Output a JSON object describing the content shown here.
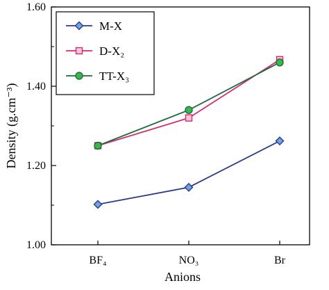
{
  "chart_data": {
    "type": "line",
    "title": "",
    "xlabel": "Anions",
    "ylabel": "Density (g.cm⁻³)",
    "categories": [
      "BF₄",
      "NO₃",
      "Br"
    ],
    "ylim": [
      1.0,
      1.6
    ],
    "yticks": [
      "1.00",
      "1.20",
      "1.40",
      "1.60"
    ],
    "legend_position": "top-left",
    "grid": false,
    "series": [
      {
        "name": "M-X",
        "values": [
          1.102,
          1.145,
          1.262
        ],
        "line_color": "#2b3a8c",
        "marker": "diamond",
        "marker_fill": "#6ea4e0",
        "marker_stroke": "#2b3a8c"
      },
      {
        "name": "D-X₂",
        "values": [
          1.25,
          1.32,
          1.467
        ],
        "line_color": "#d62a6e",
        "marker": "square",
        "marker_fill": "#f8c8dc",
        "marker_stroke": "#d62a6e"
      },
      {
        "name": "TT-X₃",
        "values": [
          1.25,
          1.34,
          1.46
        ],
        "line_color": "#1f6b3c",
        "marker": "circle",
        "marker_fill": "#3db54a",
        "marker_stroke": "#1f6b3c"
      }
    ]
  }
}
